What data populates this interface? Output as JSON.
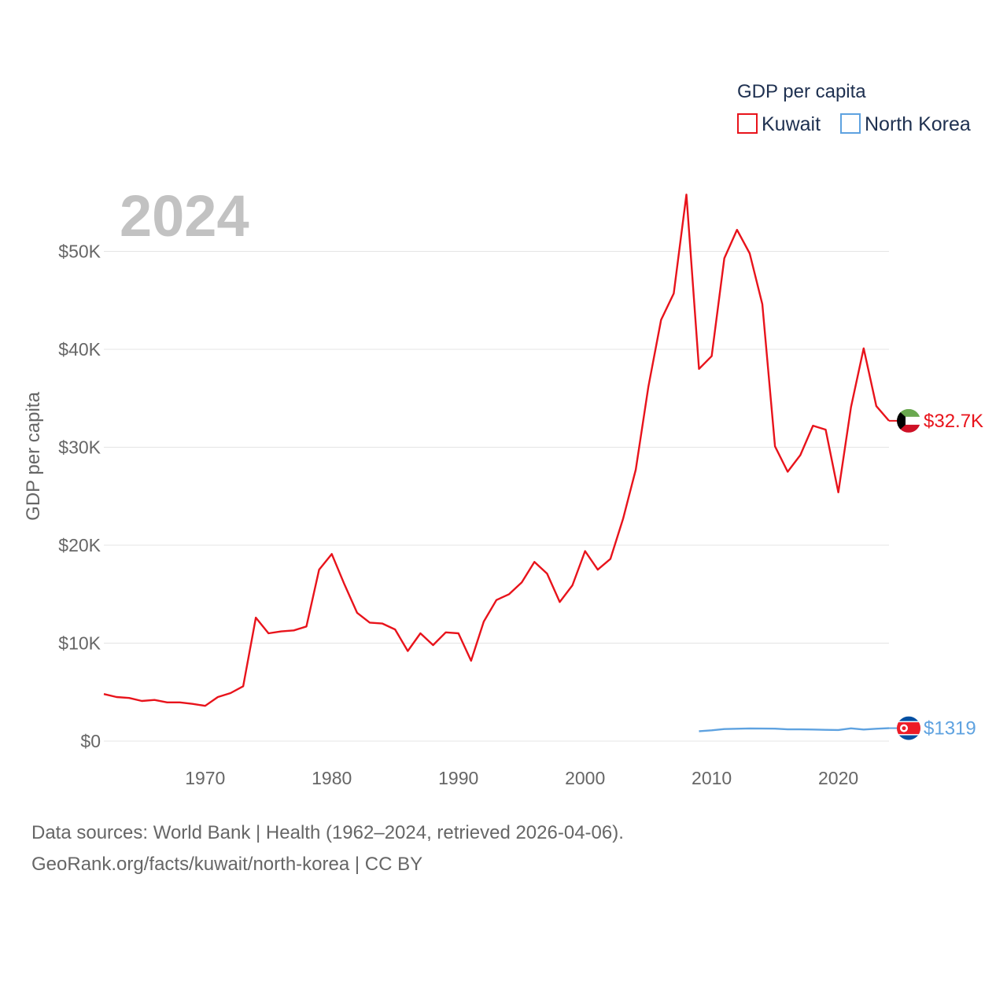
{
  "chart_data": {
    "type": "line",
    "title": "GDP per capita",
    "ylabel": "GDP per capita",
    "xlabel": "",
    "current_year_label": "2024",
    "xlim": [
      1962,
      2024
    ],
    "ylim": [
      0,
      55000
    ],
    "x_ticks": [
      1970,
      1980,
      1990,
      2000,
      2010,
      2020
    ],
    "x_tick_labels": [
      "1970",
      "1980",
      "1990",
      "2000",
      "2010",
      "2020"
    ],
    "y_ticks": [
      0,
      10000,
      20000,
      30000,
      40000,
      50000
    ],
    "y_tick_labels": [
      "$0",
      "$10K",
      "$20K",
      "$30K",
      "$40K",
      "$50K"
    ],
    "grid": true,
    "legend_placement": "top-right",
    "series": [
      {
        "name": "Kuwait",
        "color": "#e8131b",
        "end_label": "$32.7K",
        "flag": "kuwait-flag",
        "points": [
          [
            1962,
            4800
          ],
          [
            1963,
            4500
          ],
          [
            1964,
            4400
          ],
          [
            1965,
            4100
          ],
          [
            1966,
            4200
          ],
          [
            1967,
            3950
          ],
          [
            1968,
            3950
          ],
          [
            1969,
            3800
          ],
          [
            1970,
            3600
          ],
          [
            1971,
            4500
          ],
          [
            1972,
            4900
          ],
          [
            1973,
            5600
          ],
          [
            1974,
            12600
          ],
          [
            1975,
            11000
          ],
          [
            1976,
            11200
          ],
          [
            1977,
            11300
          ],
          [
            1978,
            11700
          ],
          [
            1979,
            17500
          ],
          [
            1980,
            19100
          ],
          [
            1981,
            16000
          ],
          [
            1982,
            13100
          ],
          [
            1983,
            12100
          ],
          [
            1984,
            12000
          ],
          [
            1985,
            11400
          ],
          [
            1986,
            9200
          ],
          [
            1987,
            11000
          ],
          [
            1988,
            9800
          ],
          [
            1989,
            11100
          ],
          [
            1990,
            11000
          ],
          [
            1991,
            8200
          ],
          [
            1992,
            12200
          ],
          [
            1993,
            14400
          ],
          [
            1994,
            15000
          ],
          [
            1995,
            16200
          ],
          [
            1996,
            18300
          ],
          [
            1997,
            17100
          ],
          [
            1998,
            14200
          ],
          [
            1999,
            15900
          ],
          [
            2000,
            19400
          ],
          [
            2001,
            17500
          ],
          [
            2002,
            18600
          ],
          [
            2003,
            22700
          ],
          [
            2004,
            27700
          ],
          [
            2005,
            36200
          ],
          [
            2006,
            43000
          ],
          [
            2007,
            45700
          ],
          [
            2008,
            55800
          ],
          [
            2009,
            38000
          ],
          [
            2010,
            39300
          ],
          [
            2011,
            49300
          ],
          [
            2012,
            52200
          ],
          [
            2013,
            49800
          ],
          [
            2014,
            44600
          ],
          [
            2015,
            30100
          ],
          [
            2016,
            27500
          ],
          [
            2017,
            29200
          ],
          [
            2018,
            32200
          ],
          [
            2019,
            31800
          ],
          [
            2020,
            25400
          ],
          [
            2021,
            34100
          ],
          [
            2022,
            40100
          ],
          [
            2023,
            34200
          ],
          [
            2024,
            32700
          ]
        ]
      },
      {
        "name": "North Korea",
        "color": "#5ea2e0",
        "end_label": "$1319",
        "flag": "north-korea-flag",
        "points": [
          [
            2009,
            1000
          ],
          [
            2010,
            1100
          ],
          [
            2011,
            1230
          ],
          [
            2012,
            1260
          ],
          [
            2013,
            1290
          ],
          [
            2014,
            1280
          ],
          [
            2015,
            1270
          ],
          [
            2016,
            1200
          ],
          [
            2017,
            1200
          ],
          [
            2018,
            1180
          ],
          [
            2019,
            1150
          ],
          [
            2020,
            1130
          ],
          [
            2021,
            1300
          ],
          [
            2022,
            1180
          ],
          [
            2023,
            1260
          ],
          [
            2024,
            1319
          ]
        ]
      }
    ]
  },
  "footer": {
    "sources_line": "Data sources: World Bank | Health (1962–2024, retrieved 2026-04-06).",
    "credit_line": "GeoRank.org/facts/kuwait/north-korea | CC BY"
  }
}
